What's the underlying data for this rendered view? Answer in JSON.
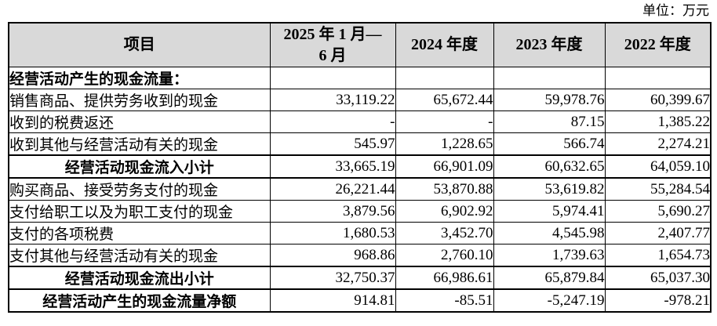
{
  "unit_label": "单位：万元",
  "colors": {
    "header_bg": "#d9d9d9",
    "border": "#000000",
    "text": "#000000",
    "body_bg": "#ffffff"
  },
  "table": {
    "columns": [
      {
        "label": "项目"
      },
      {
        "label": "2025 年 1 月—\n6 月"
      },
      {
        "label": "2024 年度"
      },
      {
        "label": "2023 年度"
      },
      {
        "label": "2022 年度"
      }
    ],
    "rows": [
      {
        "style": "section",
        "label": "经营活动产生的现金流量：",
        "values": [
          "",
          "",
          "",
          ""
        ]
      },
      {
        "style": "normal",
        "label": "销售商品、提供劳务收到的现金",
        "values": [
          "33,119.22",
          "65,672.44",
          "59,978.76",
          "60,399.67"
        ]
      },
      {
        "style": "normal",
        "label": "收到的税费返还",
        "values": [
          "-",
          "-",
          "87.15",
          "1,385.22"
        ]
      },
      {
        "style": "normal",
        "label": "收到其他与经营活动有关的现金",
        "values": [
          "545.97",
          "1,228.65",
          "566.74",
          "2,274.21"
        ]
      },
      {
        "style": "subtotal",
        "label": "经营活动现金流入小计",
        "values": [
          "33,665.19",
          "66,901.09",
          "60,632.65",
          "64,059.10"
        ]
      },
      {
        "style": "normal",
        "label": "购买商品、接受劳务支付的现金",
        "values": [
          "26,221.44",
          "53,870.88",
          "53,619.82",
          "55,284.54"
        ]
      },
      {
        "style": "normal",
        "label": "支付给职工以及为职工支付的现金",
        "values": [
          "3,879.56",
          "6,902.92",
          "5,974.41",
          "5,690.27"
        ]
      },
      {
        "style": "normal",
        "label": "支付的各项税费",
        "values": [
          "1,680.53",
          "3,452.70",
          "4,545.98",
          "2,407.77"
        ]
      },
      {
        "style": "normal",
        "label": "支付其他与经营活动有关的现金",
        "values": [
          "968.86",
          "2,760.10",
          "1,739.63",
          "1,654.73"
        ]
      },
      {
        "style": "subtotal",
        "label": "经营活动现金流出小计",
        "values": [
          "32,750.37",
          "66,986.61",
          "65,879.84",
          "65,037.30"
        ]
      },
      {
        "style": "subtotal",
        "label": "经营活动产生的现金流量净额",
        "values": [
          "914.81",
          "-85.51",
          "-5,247.19",
          "-978.21"
        ]
      }
    ]
  }
}
